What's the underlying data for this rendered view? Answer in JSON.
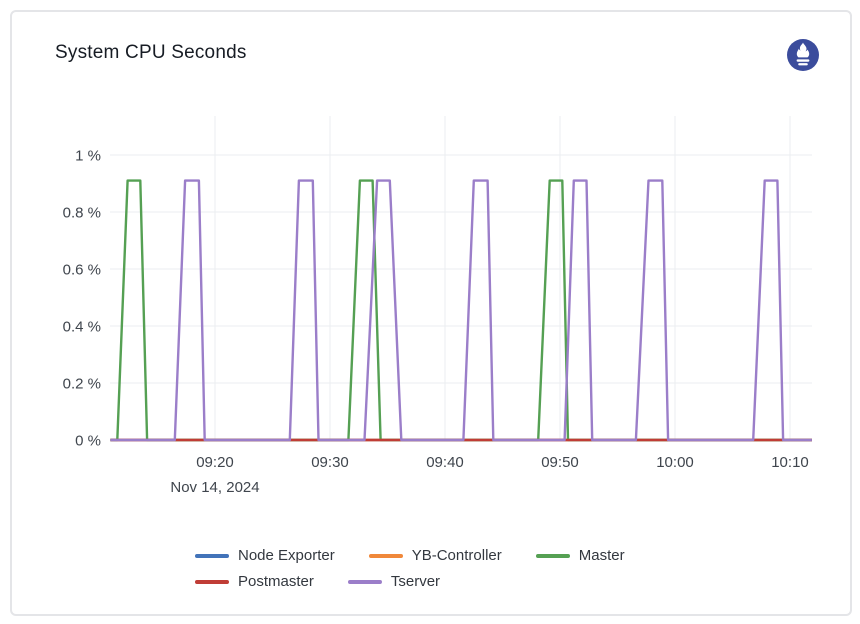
{
  "card": {
    "title": "System CPU Seconds",
    "logo": {
      "name": "prometheus-icon",
      "bg_color": "#3b4c9c",
      "glyph_color": "#ffffff"
    }
  },
  "chart_data": {
    "type": "line",
    "title": "System CPU Seconds",
    "grid": true,
    "legend_position": "bottom",
    "x_axis": {
      "date_label": "Nov 14, 2024",
      "range_minutes_after_0900": [
        10.9,
        71.9
      ],
      "ticks": [
        {
          "minutes": 20,
          "label": "09:20"
        },
        {
          "minutes": 30,
          "label": "09:30"
        },
        {
          "minutes": 40,
          "label": "09:40"
        },
        {
          "minutes": 50,
          "label": "09:50"
        },
        {
          "minutes": 60,
          "label": "10:00"
        },
        {
          "minutes": 70,
          "label": "10:10"
        }
      ]
    },
    "y_axis": {
      "unit": "percent",
      "range": [
        0,
        1.13
      ],
      "ticks": [
        {
          "value": 0,
          "label": "0 %"
        },
        {
          "value": 0.2,
          "label": "0.2 %"
        },
        {
          "value": 0.4,
          "label": "0.4 %"
        },
        {
          "value": 0.6,
          "label": "0.6 %"
        },
        {
          "value": 0.8,
          "label": "0.8 %"
        },
        {
          "value": 1.0,
          "label": "1 %"
        }
      ]
    },
    "peak_percent": 0.91,
    "series": [
      {
        "id": "node-exporter",
        "name": "Node Exporter",
        "color": "#4273b9",
        "points": [
          [
            10.9,
            0
          ],
          [
            71.9,
            0
          ]
        ]
      },
      {
        "id": "yb-controller",
        "name": "YB-Controller",
        "color": "#f0883a",
        "points": [
          [
            10.9,
            0
          ],
          [
            71.9,
            0
          ]
        ]
      },
      {
        "id": "master",
        "name": "Master",
        "color": "#55a053",
        "points": [
          [
            10.9,
            0
          ],
          [
            11.5,
            0
          ],
          [
            12.4,
            0.91
          ],
          [
            13.5,
            0.91
          ],
          [
            14.1,
            0
          ],
          [
            31.6,
            0
          ],
          [
            32.6,
            0.91
          ],
          [
            33.7,
            0.91
          ],
          [
            34.4,
            0
          ],
          [
            48.1,
            0
          ],
          [
            49.1,
            0.91
          ],
          [
            50.2,
            0.91
          ],
          [
            50.7,
            0
          ],
          [
            71.9,
            0
          ]
        ]
      },
      {
        "id": "postmaster",
        "name": "Postmaster",
        "color": "#c03d36",
        "points": [
          [
            10.9,
            0
          ],
          [
            71.9,
            0
          ]
        ]
      },
      {
        "id": "tserver",
        "name": "Tserver",
        "color": "#9b7ec9",
        "points": [
          [
            10.9,
            0
          ],
          [
            16.5,
            0
          ],
          [
            17.4,
            0.91
          ],
          [
            18.6,
            0.91
          ],
          [
            19.1,
            0
          ],
          [
            26.5,
            0
          ],
          [
            27.3,
            0.91
          ],
          [
            28.5,
            0.91
          ],
          [
            29.0,
            0
          ],
          [
            33.0,
            0
          ],
          [
            34.1,
            0.91
          ],
          [
            35.2,
            0.91
          ],
          [
            36.2,
            0
          ],
          [
            41.6,
            0
          ],
          [
            42.5,
            0.91
          ],
          [
            43.7,
            0.91
          ],
          [
            44.2,
            0
          ],
          [
            50.4,
            0
          ],
          [
            51.2,
            0.91
          ],
          [
            52.3,
            0.91
          ],
          [
            52.8,
            0
          ],
          [
            56.6,
            0
          ],
          [
            57.7,
            0.91
          ],
          [
            58.9,
            0.91
          ],
          [
            59.4,
            0
          ],
          [
            66.8,
            0
          ],
          [
            67.8,
            0.91
          ],
          [
            68.9,
            0.91
          ],
          [
            69.4,
            0
          ],
          [
            71.9,
            0
          ]
        ]
      }
    ],
    "grid_color": "#ebedf0"
  }
}
